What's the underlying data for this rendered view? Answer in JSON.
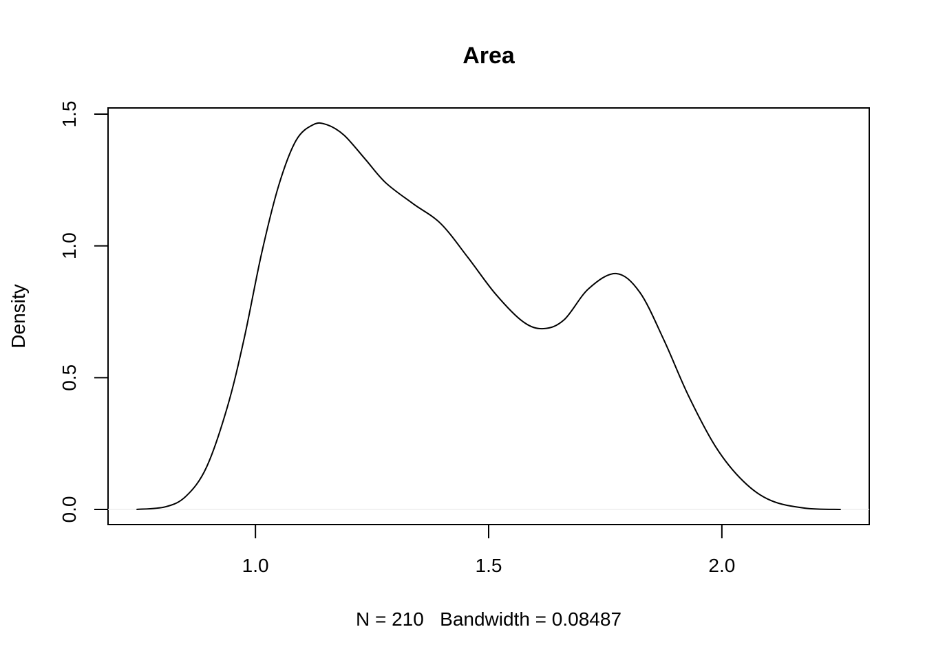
{
  "chart_data": {
    "type": "line",
    "title": "Area",
    "xlabel": "N = 210   Bandwidth = 0.08487",
    "ylabel": "Density",
    "x": [
      0.745,
      0.807,
      0.851,
      0.895,
      0.94,
      0.976,
      1.013,
      1.05,
      1.087,
      1.124,
      1.153,
      1.19,
      1.235,
      1.279,
      1.338,
      1.397,
      1.456,
      1.515,
      1.574,
      1.618,
      1.662,
      1.714,
      1.773,
      1.824,
      1.876,
      1.928,
      1.987,
      2.046,
      2.105,
      2.178,
      2.255
    ],
    "series": [
      {
        "color": "#000000",
        "values": [
          0.0,
          0.01,
          0.05,
          0.16,
          0.39,
          0.65,
          0.97,
          1.23,
          1.4,
          1.46,
          1.46,
          1.42,
          1.33,
          1.24,
          1.16,
          1.085,
          0.955,
          0.817,
          0.712,
          0.686,
          0.72,
          0.837,
          0.895,
          0.824,
          0.642,
          0.433,
          0.237,
          0.107,
          0.034,
          0.005,
          0.0
        ]
      }
    ],
    "xlim": [
      0.684,
      2.316
    ],
    "ylim": [
      -0.0574,
      1.5235
    ],
    "xticks": [
      {
        "value": 1.0,
        "label": "1.0"
      },
      1.5,
      {
        "value": 2.0,
        "label": "2.0"
      }
    ],
    "yticks": [
      {
        "value": 0.0,
        "label": "0.0"
      },
      0.5,
      {
        "value": 1.0,
        "label": "1.0"
      },
      1.5
    ]
  }
}
